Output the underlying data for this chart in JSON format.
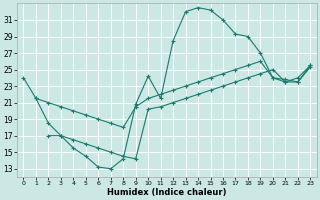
{
  "xlabel": "Humidex (Indice chaleur)",
  "bg_color": "#cce8e4",
  "grid_color": "#ffffff",
  "line_color": "#1a7a6e",
  "xlim": [
    -0.5,
    23.5
  ],
  "ylim": [
    12.0,
    33.0
  ],
  "xticks": [
    0,
    1,
    2,
    3,
    4,
    5,
    6,
    7,
    8,
    9,
    10,
    11,
    12,
    13,
    14,
    15,
    16,
    17,
    18,
    19,
    20,
    21,
    22,
    23
  ],
  "yticks": [
    13,
    15,
    17,
    19,
    21,
    23,
    25,
    27,
    29,
    31
  ],
  "line1_x": [
    0,
    1,
    2,
    3,
    4,
    5,
    6,
    7,
    8,
    9,
    10,
    11,
    12,
    13,
    14,
    15,
    16,
    17,
    18,
    19,
    20,
    21,
    22,
    23
  ],
  "line1_y": [
    24.0,
    21.5,
    18.5,
    17.0,
    15.5,
    14.5,
    13.2,
    13.0,
    14.2,
    20.8,
    24.2,
    21.5,
    28.5,
    32.0,
    32.5,
    32.2,
    31.0,
    29.3,
    29.0,
    27.0,
    24.0,
    23.5,
    24.0,
    25.5
  ],
  "line2_x": [
    1,
    2,
    3,
    4,
    5,
    6,
    7,
    8,
    9,
    10,
    11,
    12,
    13,
    14,
    15,
    16,
    17,
    18,
    19,
    20,
    21,
    22,
    23
  ],
  "line2_y": [
    21.5,
    21.0,
    20.5,
    20.0,
    19.5,
    19.0,
    18.5,
    18.0,
    20.5,
    21.5,
    22.0,
    22.5,
    23.0,
    23.5,
    24.0,
    24.5,
    25.0,
    25.5,
    26.0,
    24.0,
    23.8,
    23.5,
    25.5
  ],
  "line3_x": [
    2,
    3,
    4,
    5,
    6,
    7,
    8,
    9,
    10,
    11,
    12,
    13,
    14,
    15,
    16,
    17,
    18,
    19,
    20,
    21,
    22,
    23
  ],
  "line3_y": [
    17.0,
    17.0,
    16.5,
    16.0,
    15.5,
    15.0,
    14.5,
    14.2,
    20.2,
    20.5,
    21.0,
    21.5,
    22.0,
    22.5,
    23.0,
    23.5,
    24.0,
    24.5,
    25.0,
    23.5,
    23.5,
    25.3
  ]
}
